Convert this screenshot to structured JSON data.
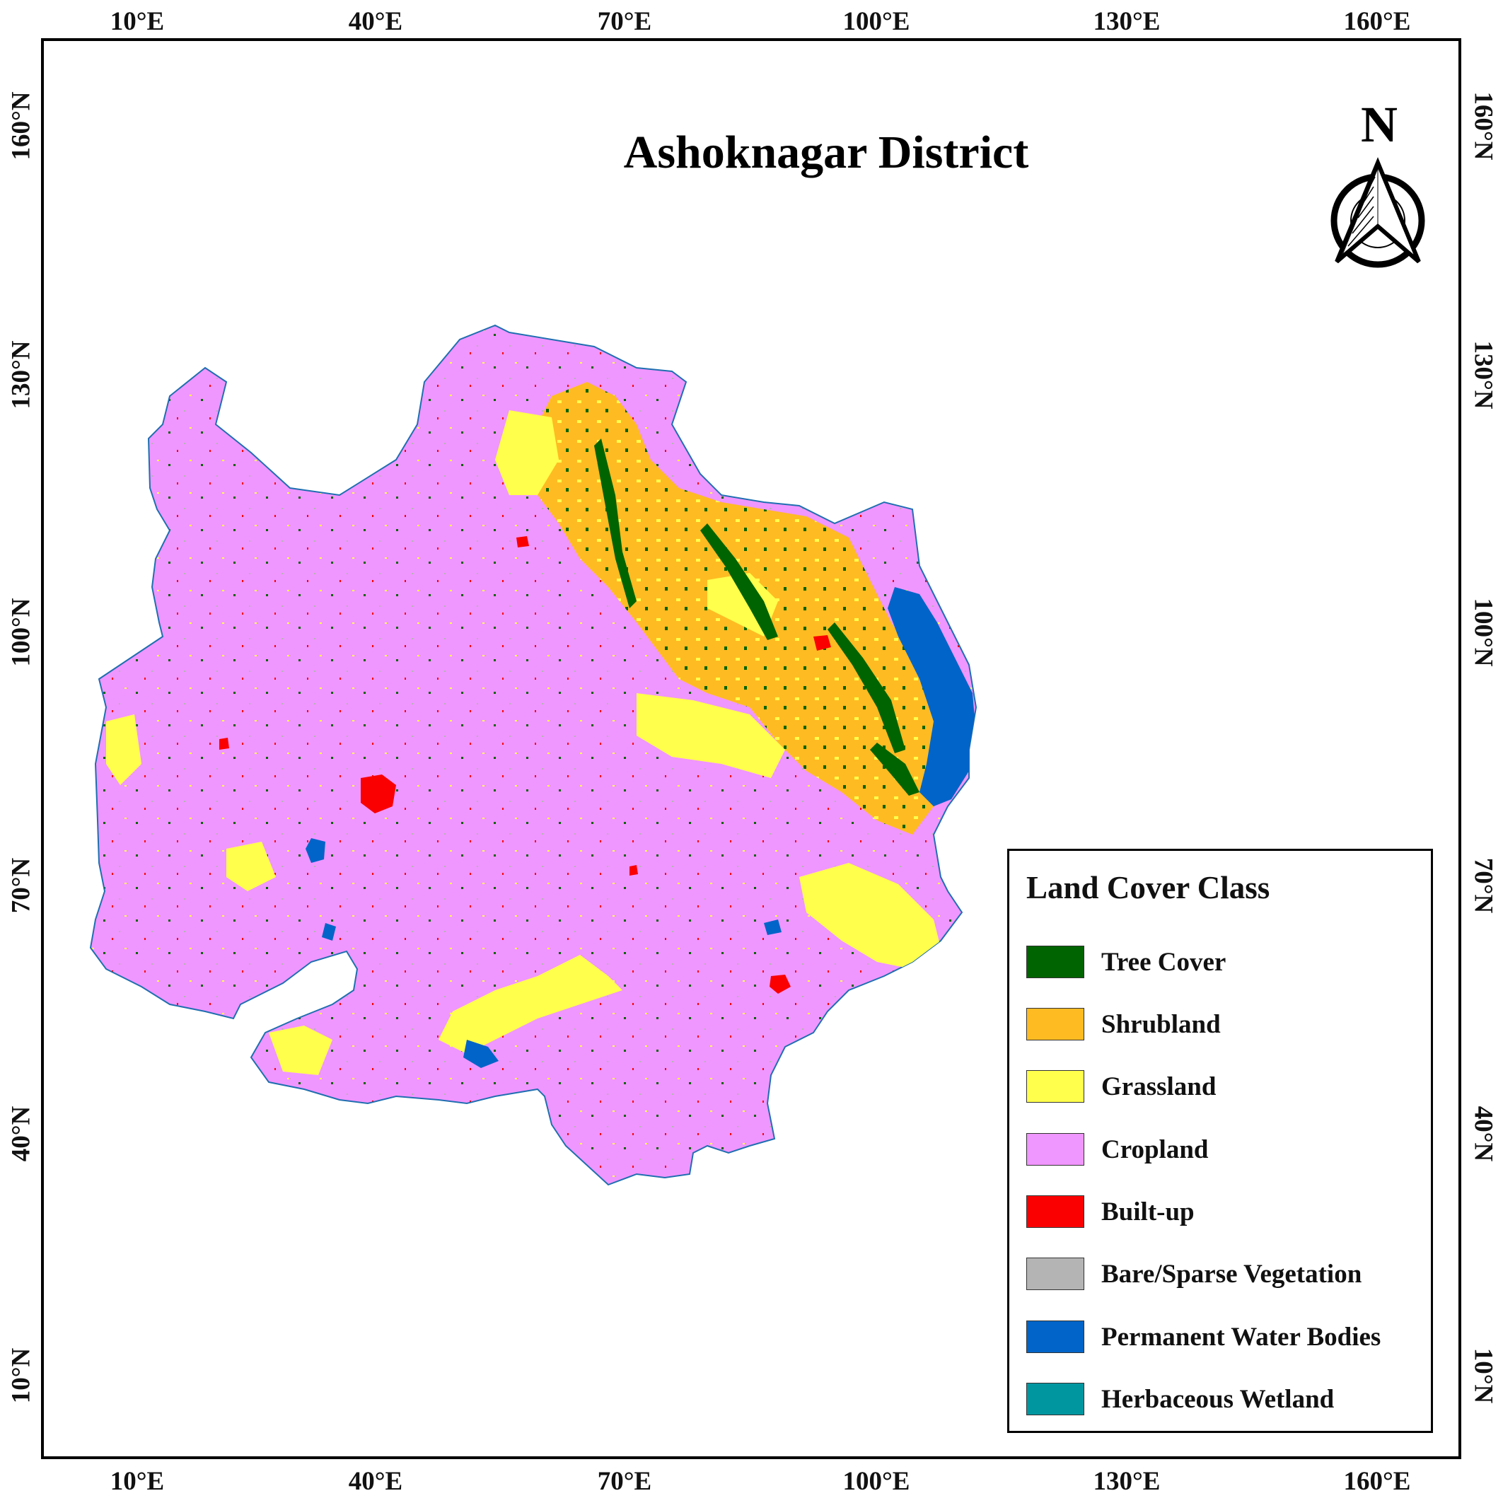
{
  "map": {
    "title": "Ashoknagar District",
    "north_label": "N",
    "x_ticks": [
      "10°E",
      "40°E",
      "70°E",
      "100°E",
      "130°E",
      "160°E"
    ],
    "y_ticks": [
      "160°N",
      "130°N",
      "100°N",
      "70°N",
      "40°N",
      "10°N"
    ]
  },
  "legend": {
    "title": "Land Cover Class",
    "items": [
      {
        "label": "Tree Cover",
        "color": "#006400"
      },
      {
        "label": "Shrubland",
        "color": "#ffbb22"
      },
      {
        "label": "Grassland",
        "color": "#ffff4c"
      },
      {
        "label": "Cropland",
        "color": "#f096ff"
      },
      {
        "label": "Built-up",
        "color": "#fa0000"
      },
      {
        "label": "Bare/Sparse Vegetation",
        "color": "#b4b4b4"
      },
      {
        "label": "Permanent Water Bodies",
        "color": "#0064c8"
      },
      {
        "label": "Herbaceous Wetland",
        "color": "#0096a0"
      }
    ]
  }
}
